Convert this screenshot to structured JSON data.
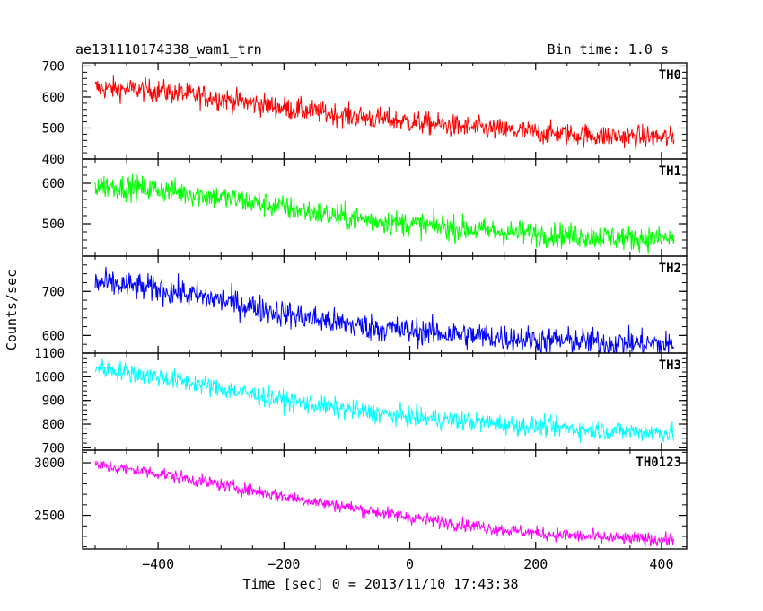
{
  "title": "ae131110174338_wam1_trn",
  "bin_time": "Bin time: 1.0 s",
  "xlabel": "Time [sec] 0 = 2013/11/10 17:43:38",
  "ylabel": "Counts/sec",
  "chart_data": {
    "type": "line",
    "xlim": [
      -520,
      440
    ],
    "x_ticks": [
      -400,
      -200,
      0,
      200,
      400
    ],
    "x_tick_labels": [
      "−400",
      "−200",
      "0",
      "200",
      "400"
    ],
    "x_range": [
      -500,
      420
    ],
    "bin_seconds": 1.0,
    "grid": false,
    "panels": [
      {
        "name": "TH0",
        "color": "#ff0000",
        "ylim": [
          400,
          710
        ],
        "ticks": [
          400,
          500,
          600,
          700
        ],
        "tick_labels": [
          "400",
          "500",
          "600",
          "700"
        ],
        "trend_time": [
          -500,
          -400,
          -300,
          -200,
          -100,
          0,
          100,
          200,
          300,
          400,
          420
        ],
        "trend_value": [
          630,
          620,
          595,
          565,
          540,
          520,
          500,
          485,
          475,
          470,
          465
        ],
        "noise": 26
      },
      {
        "name": "TH1",
        "color": "#00ff00",
        "ylim": [
          420,
          660
        ],
        "ticks": [
          500,
          600
        ],
        "tick_labels": [
          "500",
          "600"
        ],
        "trend_time": [
          -500,
          -400,
          -300,
          -200,
          -100,
          0,
          100,
          200,
          300,
          400,
          420
        ],
        "trend_value": [
          595,
          585,
          565,
          540,
          515,
          500,
          485,
          475,
          468,
          463,
          462
        ],
        "noise": 22
      },
      {
        "name": "TH2",
        "color": "#0000ff",
        "ylim": [
          560,
          780
        ],
        "ticks": [
          600,
          700
        ],
        "tick_labels": [
          "600",
          "700"
        ],
        "trend_time": [
          -500,
          -400,
          -300,
          -200,
          -100,
          0,
          100,
          200,
          300,
          400,
          420
        ],
        "trend_value": [
          720,
          705,
          680,
          650,
          625,
          610,
          600,
          590,
          585,
          580,
          578
        ],
        "noise": 22
      },
      {
        "name": "TH3",
        "color": "#00ffff",
        "ylim": [
          690,
          1100
        ],
        "ticks": [
          700,
          800,
          900,
          1000,
          1100
        ],
        "tick_labels": [
          "700",
          "800",
          "900",
          "1000",
          "1100"
        ],
        "trend_time": [
          -500,
          -400,
          -300,
          -200,
          -100,
          0,
          100,
          200,
          300,
          400,
          420
        ],
        "trend_value": [
          1040,
          1000,
          950,
          900,
          860,
          830,
          810,
          790,
          775,
          765,
          762
        ],
        "noise": 30
      },
      {
        "name": "TH0123",
        "color": "#ff00ff",
        "ylim": [
          2180,
          3120
        ],
        "ticks": [
          2500,
          3000
        ],
        "tick_labels": [
          "2500",
          "3000"
        ],
        "trend_time": [
          -500,
          -400,
          -300,
          -200,
          -100,
          0,
          100,
          200,
          300,
          400,
          420
        ],
        "trend_value": [
          2980,
          2900,
          2790,
          2680,
          2580,
          2480,
          2400,
          2330,
          2290,
          2270,
          2265
        ],
        "noise": 45
      }
    ]
  }
}
